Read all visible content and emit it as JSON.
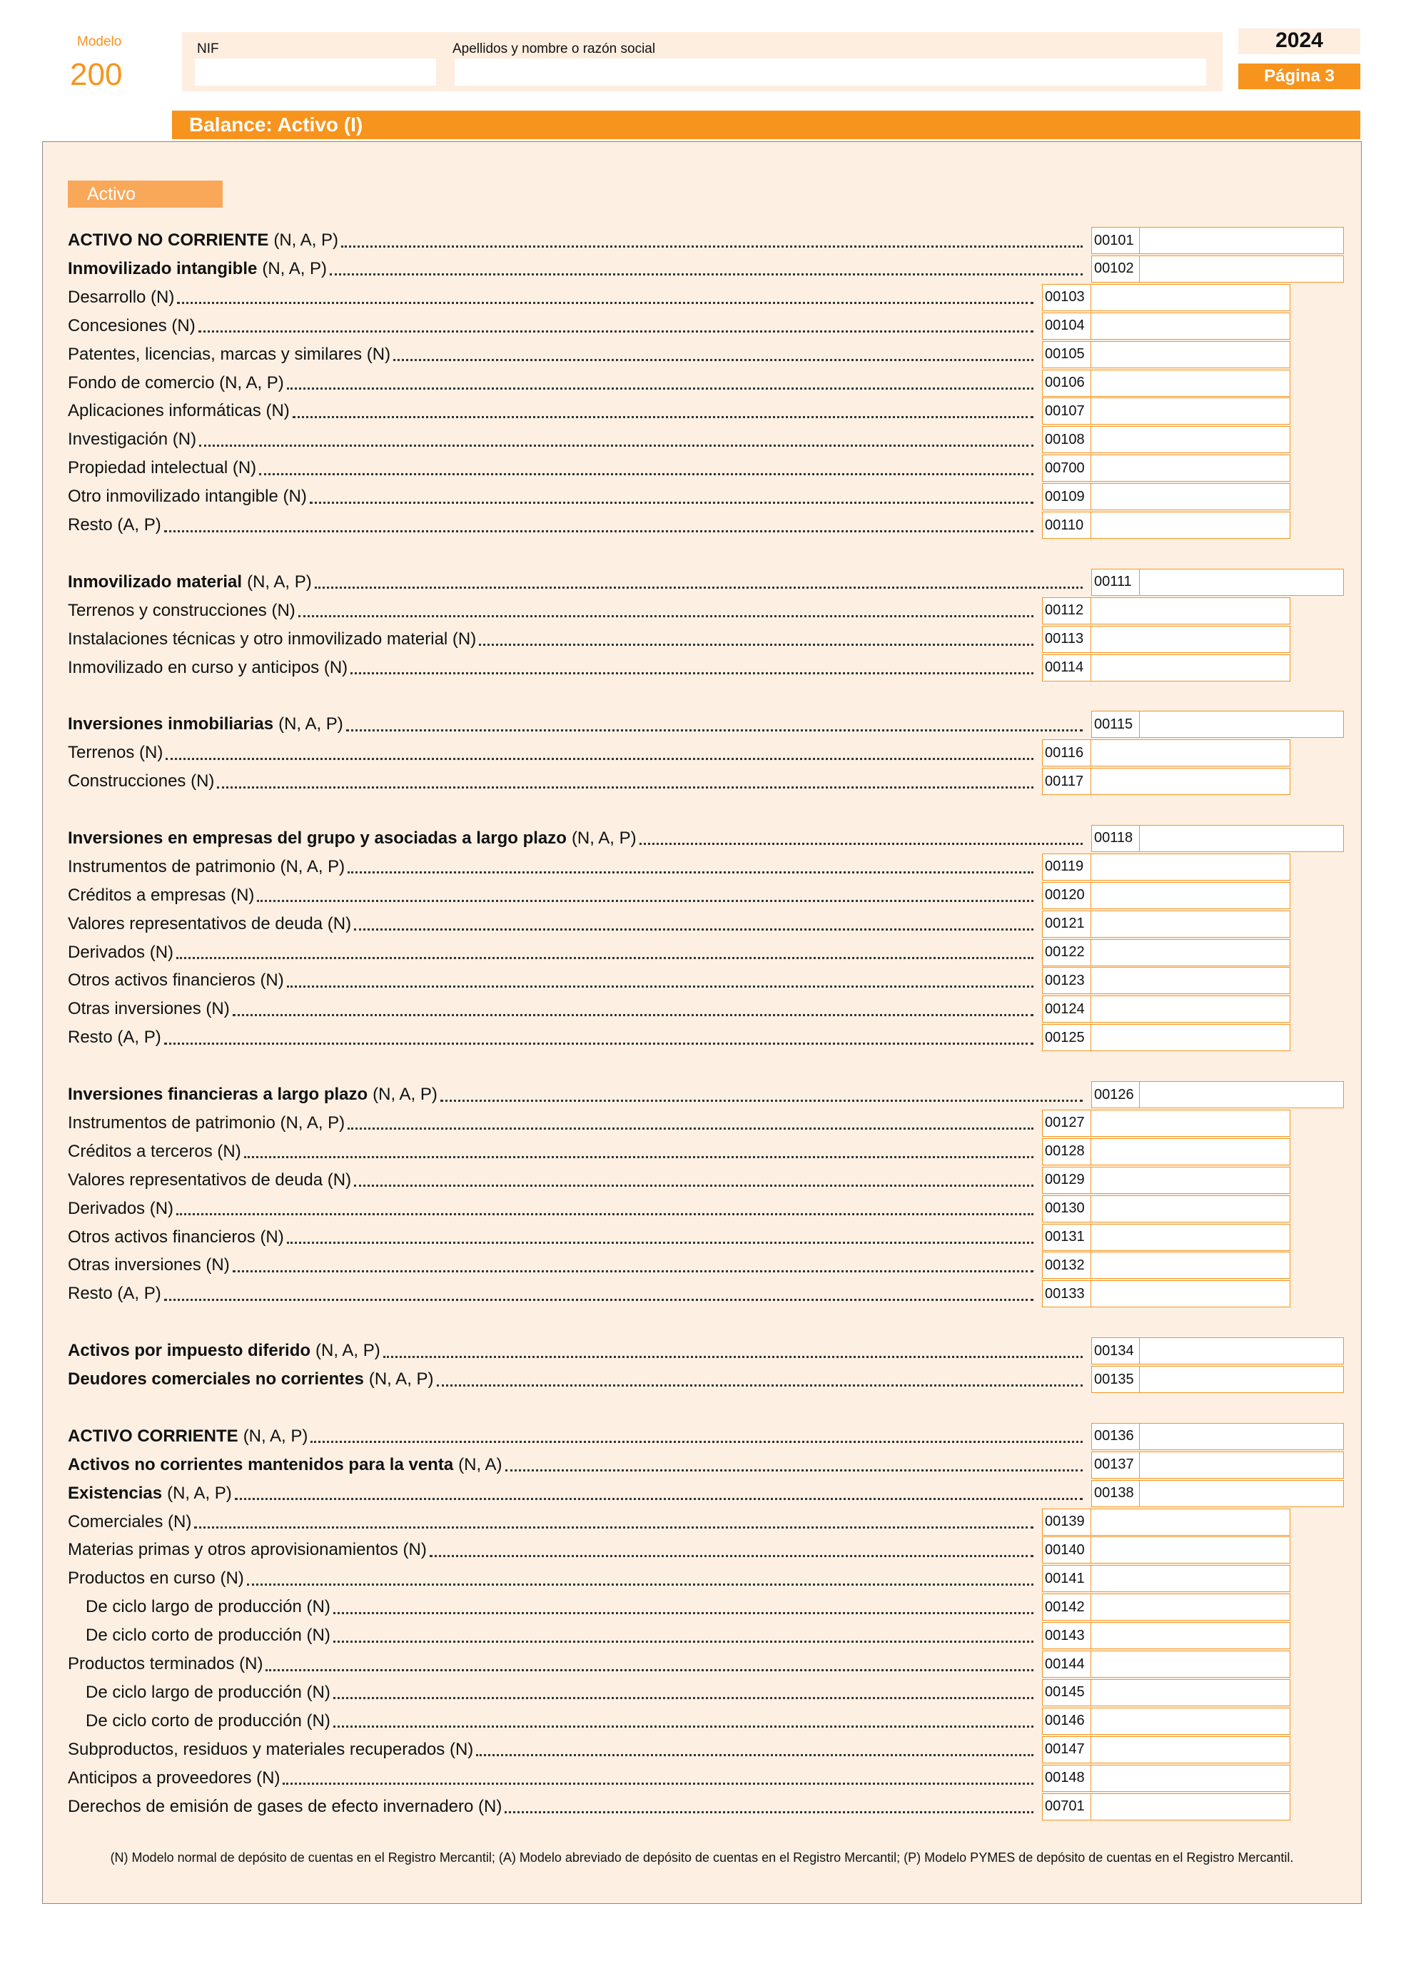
{
  "header": {
    "modelo_label": "Modelo",
    "modelo": "200",
    "nif_label": "NIF",
    "name_label": "Apellidos y nombre o razón social",
    "year": "2024",
    "page": "Página 3"
  },
  "section_title": "Balance: Activo (I)",
  "tab": "Activo",
  "groups": [
    [
      {
        "bold": "ACTIVO NO CORRIENTE",
        "text": "(N, A, P)",
        "code": "00101"
      },
      {
        "bold": "Inmovilizado intangible",
        "text": "(N, A, P)",
        "code": "00102"
      },
      {
        "text": "Desarrollo (N)",
        "code": "00103"
      },
      {
        "text": "Concesiones (N)",
        "code": "00104"
      },
      {
        "text": "Patentes, licencias, marcas y similares (N)",
        "code": "00105"
      },
      {
        "text": "Fondo de comercio (N, A, P)",
        "code": "00106"
      },
      {
        "text": "Aplicaciones informáticas (N)",
        "code": "00107"
      },
      {
        "text": "Investigación (N)",
        "code": "00108"
      },
      {
        "text": "Propiedad intelectual (N)",
        "code": "00700"
      },
      {
        "text": "Otro inmovilizado intangible (N)",
        "code": "00109"
      },
      {
        "text": "Resto (A, P)",
        "code": "00110"
      }
    ],
    [
      {
        "bold": "Inmovilizado material",
        "text": "(N, A, P)",
        "code": "00111"
      },
      {
        "text": "Terrenos y construcciones (N)",
        "code": "00112"
      },
      {
        "text": "Instalaciones técnicas y otro inmovilizado material (N)",
        "code": "00113"
      },
      {
        "text": "Inmovilizado en curso y anticipos (N)",
        "code": "00114"
      }
    ],
    [
      {
        "bold": "Inversiones inmobiliarias",
        "text": "(N, A, P)",
        "code": "00115"
      },
      {
        "text": "Terrenos (N)",
        "code": "00116"
      },
      {
        "text": "Construcciones (N)",
        "code": "00117"
      }
    ],
    [
      {
        "bold": "Inversiones en empresas del grupo y asociadas a largo plazo",
        "text": "(N, A, P)",
        "code": "00118"
      },
      {
        "text": "Instrumentos de patrimonio (N, A, P)",
        "code": "00119"
      },
      {
        "text": "Créditos a empresas (N)",
        "code": "00120"
      },
      {
        "text": "Valores representativos de deuda (N)",
        "code": "00121"
      },
      {
        "text": "Derivados (N)",
        "code": "00122"
      },
      {
        "text": "Otros activos financieros (N)",
        "code": "00123"
      },
      {
        "text": "Otras inversiones (N)",
        "code": "00124"
      },
      {
        "text": "Resto (A, P)",
        "code": "00125"
      }
    ],
    [
      {
        "bold": "Inversiones financieras a largo plazo",
        "text": "(N, A, P)",
        "code": "00126"
      },
      {
        "text": "Instrumentos de patrimonio (N, A, P)",
        "code": "00127"
      },
      {
        "text": "Créditos a terceros (N)",
        "code": "00128"
      },
      {
        "text": "Valores representativos de deuda (N)",
        "code": "00129"
      },
      {
        "text": "Derivados (N)",
        "code": "00130"
      },
      {
        "text": "Otros activos financieros (N)",
        "code": "00131"
      },
      {
        "text": "Otras inversiones (N)",
        "code": "00132"
      },
      {
        "text": "Resto (A, P)",
        "code": "00133"
      }
    ],
    [
      {
        "bold": "Activos por impuesto diferido",
        "text": "(N, A, P)",
        "code": "00134"
      },
      {
        "bold": "Deudores comerciales no corrientes",
        "text": "(N, A, P)",
        "code": "00135"
      }
    ],
    [
      {
        "bold": "ACTIVO CORRIENTE",
        "text": "(N, A, P)",
        "code": "00136"
      },
      {
        "bold": "Activos no corrientes mantenidos para la venta",
        "text": "(N, A)",
        "code": "00137"
      },
      {
        "bold": "Existencias",
        "text": "(N, A, P)",
        "code": "00138"
      },
      {
        "text": "Comerciales (N)",
        "code": "00139"
      },
      {
        "text": "Materias primas y otros aprovisionamientos (N)",
        "code": "00140"
      },
      {
        "text": "Productos en curso (N)",
        "code": "00141",
        "items": [
          {
            "text": "De ciclo largo de producción (N)",
            "code": "00142"
          },
          {
            "text": "De ciclo corto de producción (N)",
            "code": "00143"
          }
        ]
      },
      {
        "text": "Productos terminados (N)",
        "code": "00144",
        "items": [
          {
            "text": "De ciclo largo de producción (N)",
            "code": "00145"
          },
          {
            "text": "De ciclo corto de producción (N)",
            "code": "00146"
          }
        ]
      },
      {
        "text": "Subproductos, residuos y materiales recuperados (N)",
        "code": "00147"
      },
      {
        "text": "Anticipos a proveedores (N)",
        "code": "00148"
      },
      {
        "text": "Derechos de emisión de gases de efecto invernadero (N)",
        "code": "00701"
      }
    ]
  ],
  "footnote": "(N)  Modelo normal de depósito de cuentas en el Registro Mercantil; (A) Modelo abreviado de depósito de cuentas en el Registro Mercantil; (P) Modelo PYMES de depósito de cuentas en el Registro Mercantil."
}
